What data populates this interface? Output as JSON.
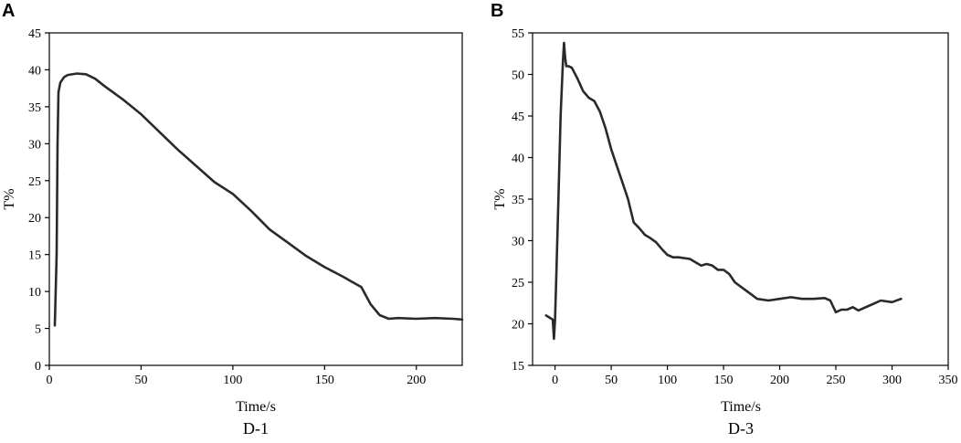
{
  "chart_data": [
    {
      "type": "line",
      "panel_label": "A",
      "caption": "D-1",
      "xlabel": "Time/s",
      "ylabel": "T%",
      "xlim": [
        0,
        225
      ],
      "ylim": [
        0,
        45
      ],
      "xticks": [
        0,
        50,
        100,
        150,
        200
      ],
      "yticks": [
        0,
        5,
        10,
        15,
        20,
        25,
        30,
        35,
        40,
        45
      ],
      "grid": false,
      "series": [
        {
          "x": [
            3,
            4,
            4.5,
            5,
            6,
            8,
            10,
            15,
            20,
            25,
            30,
            40,
            50,
            60,
            70,
            80,
            90,
            100,
            110,
            120,
            130,
            140,
            150,
            160,
            170,
            175,
            180,
            185,
            190,
            200,
            210,
            220,
            225
          ],
          "y": [
            5.4,
            15,
            30,
            37,
            38.3,
            39.0,
            39.3,
            39.5,
            39.4,
            38.8,
            37.8,
            36.0,
            34.0,
            31.6,
            29.2,
            27.0,
            24.8,
            23.2,
            20.9,
            18.4,
            16.6,
            14.8,
            13.3,
            12.0,
            10.6,
            8.3,
            6.8,
            6.3,
            6.4,
            6.3,
            6.4,
            6.3,
            6.2
          ]
        }
      ]
    },
    {
      "type": "line",
      "panel_label": "B",
      "caption": "D-3",
      "xlabel": "Time/s",
      "ylabel": "T%",
      "xlim": [
        -20,
        350
      ],
      "ylim": [
        15,
        55
      ],
      "xticks": [
        0,
        50,
        100,
        150,
        200,
        250,
        300,
        350
      ],
      "yticks": [
        15,
        20,
        25,
        30,
        35,
        40,
        45,
        50,
        55
      ],
      "grid": false,
      "series": [
        {
          "x": [
            -8,
            -2,
            -1,
            0,
            1,
            3,
            5,
            7,
            8,
            9,
            10,
            12,
            15,
            20,
            25,
            30,
            35,
            40,
            45,
            50,
            55,
            60,
            65,
            70,
            75,
            80,
            85,
            90,
            95,
            100,
            105,
            110,
            120,
            130,
            135,
            140,
            145,
            150,
            155,
            160,
            165,
            170,
            175,
            180,
            190,
            200,
            210,
            220,
            230,
            240,
            245,
            250,
            255,
            260,
            265,
            270,
            280,
            290,
            300,
            308
          ],
          "y": [
            21.0,
            20.5,
            18.2,
            20.5,
            25,
            35,
            45,
            51.5,
            53.8,
            52.0,
            51.0,
            51.0,
            50.8,
            49.5,
            48.0,
            47.2,
            46.8,
            45.5,
            43.5,
            41.0,
            39.0,
            37.0,
            35.0,
            32.2,
            31.5,
            30.7,
            30.3,
            29.8,
            29.0,
            28.3,
            28.0,
            28.0,
            27.8,
            27.0,
            27.2,
            27.0,
            26.5,
            26.5,
            26.0,
            25.0,
            24.5,
            24.0,
            23.5,
            23.0,
            22.8,
            23.0,
            23.2,
            23.0,
            23.0,
            23.1,
            22.8,
            21.4,
            21.7,
            21.7,
            22.0,
            21.6,
            22.2,
            22.8,
            22.6,
            23.0
          ]
        }
      ]
    }
  ]
}
